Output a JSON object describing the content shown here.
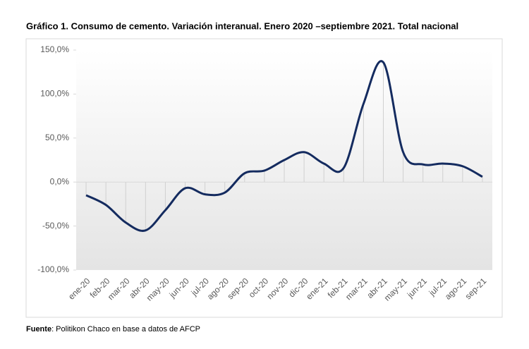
{
  "chart_data": {
    "type": "line",
    "title": "Gráfico 1. Consumo de cemento. Variación interanual. Enero 2020 –septiembre 2021. Total nacional",
    "categories": [
      "ene-20",
      "feb-20",
      "mar-20",
      "abr-20",
      "may-20",
      "jun-20",
      "jul-20",
      "ago-20",
      "sep-20",
      "oct-20",
      "nov-20",
      "dic-20",
      "ene-21",
      "feb-21",
      "mar-21",
      "abr-21",
      "may-21",
      "jun-21",
      "jul-21",
      "ago-21",
      "sep-21"
    ],
    "values": [
      -15,
      -26,
      -46,
      -55,
      -32,
      -7,
      -14,
      -12,
      10,
      13,
      25,
      34,
      21,
      16,
      89,
      136,
      34,
      20,
      21,
      18,
      6
    ],
    "color": "#142b5f",
    "ylim": [
      -100,
      150
    ],
    "yticks": [
      {
        "value": -100,
        "label": "-100,0%"
      },
      {
        "value": -50,
        "label": "-50,0%"
      },
      {
        "value": 0,
        "label": "0,0%"
      },
      {
        "value": 50,
        "label": "50,0%"
      },
      {
        "value": 100,
        "label": "100,0%"
      },
      {
        "value": 150,
        "label": "150,0%"
      }
    ],
    "drop_lines": true,
    "source_label": "Fuente",
    "source_text": ": Politikon Chaco en base a datos de AFCP"
  }
}
